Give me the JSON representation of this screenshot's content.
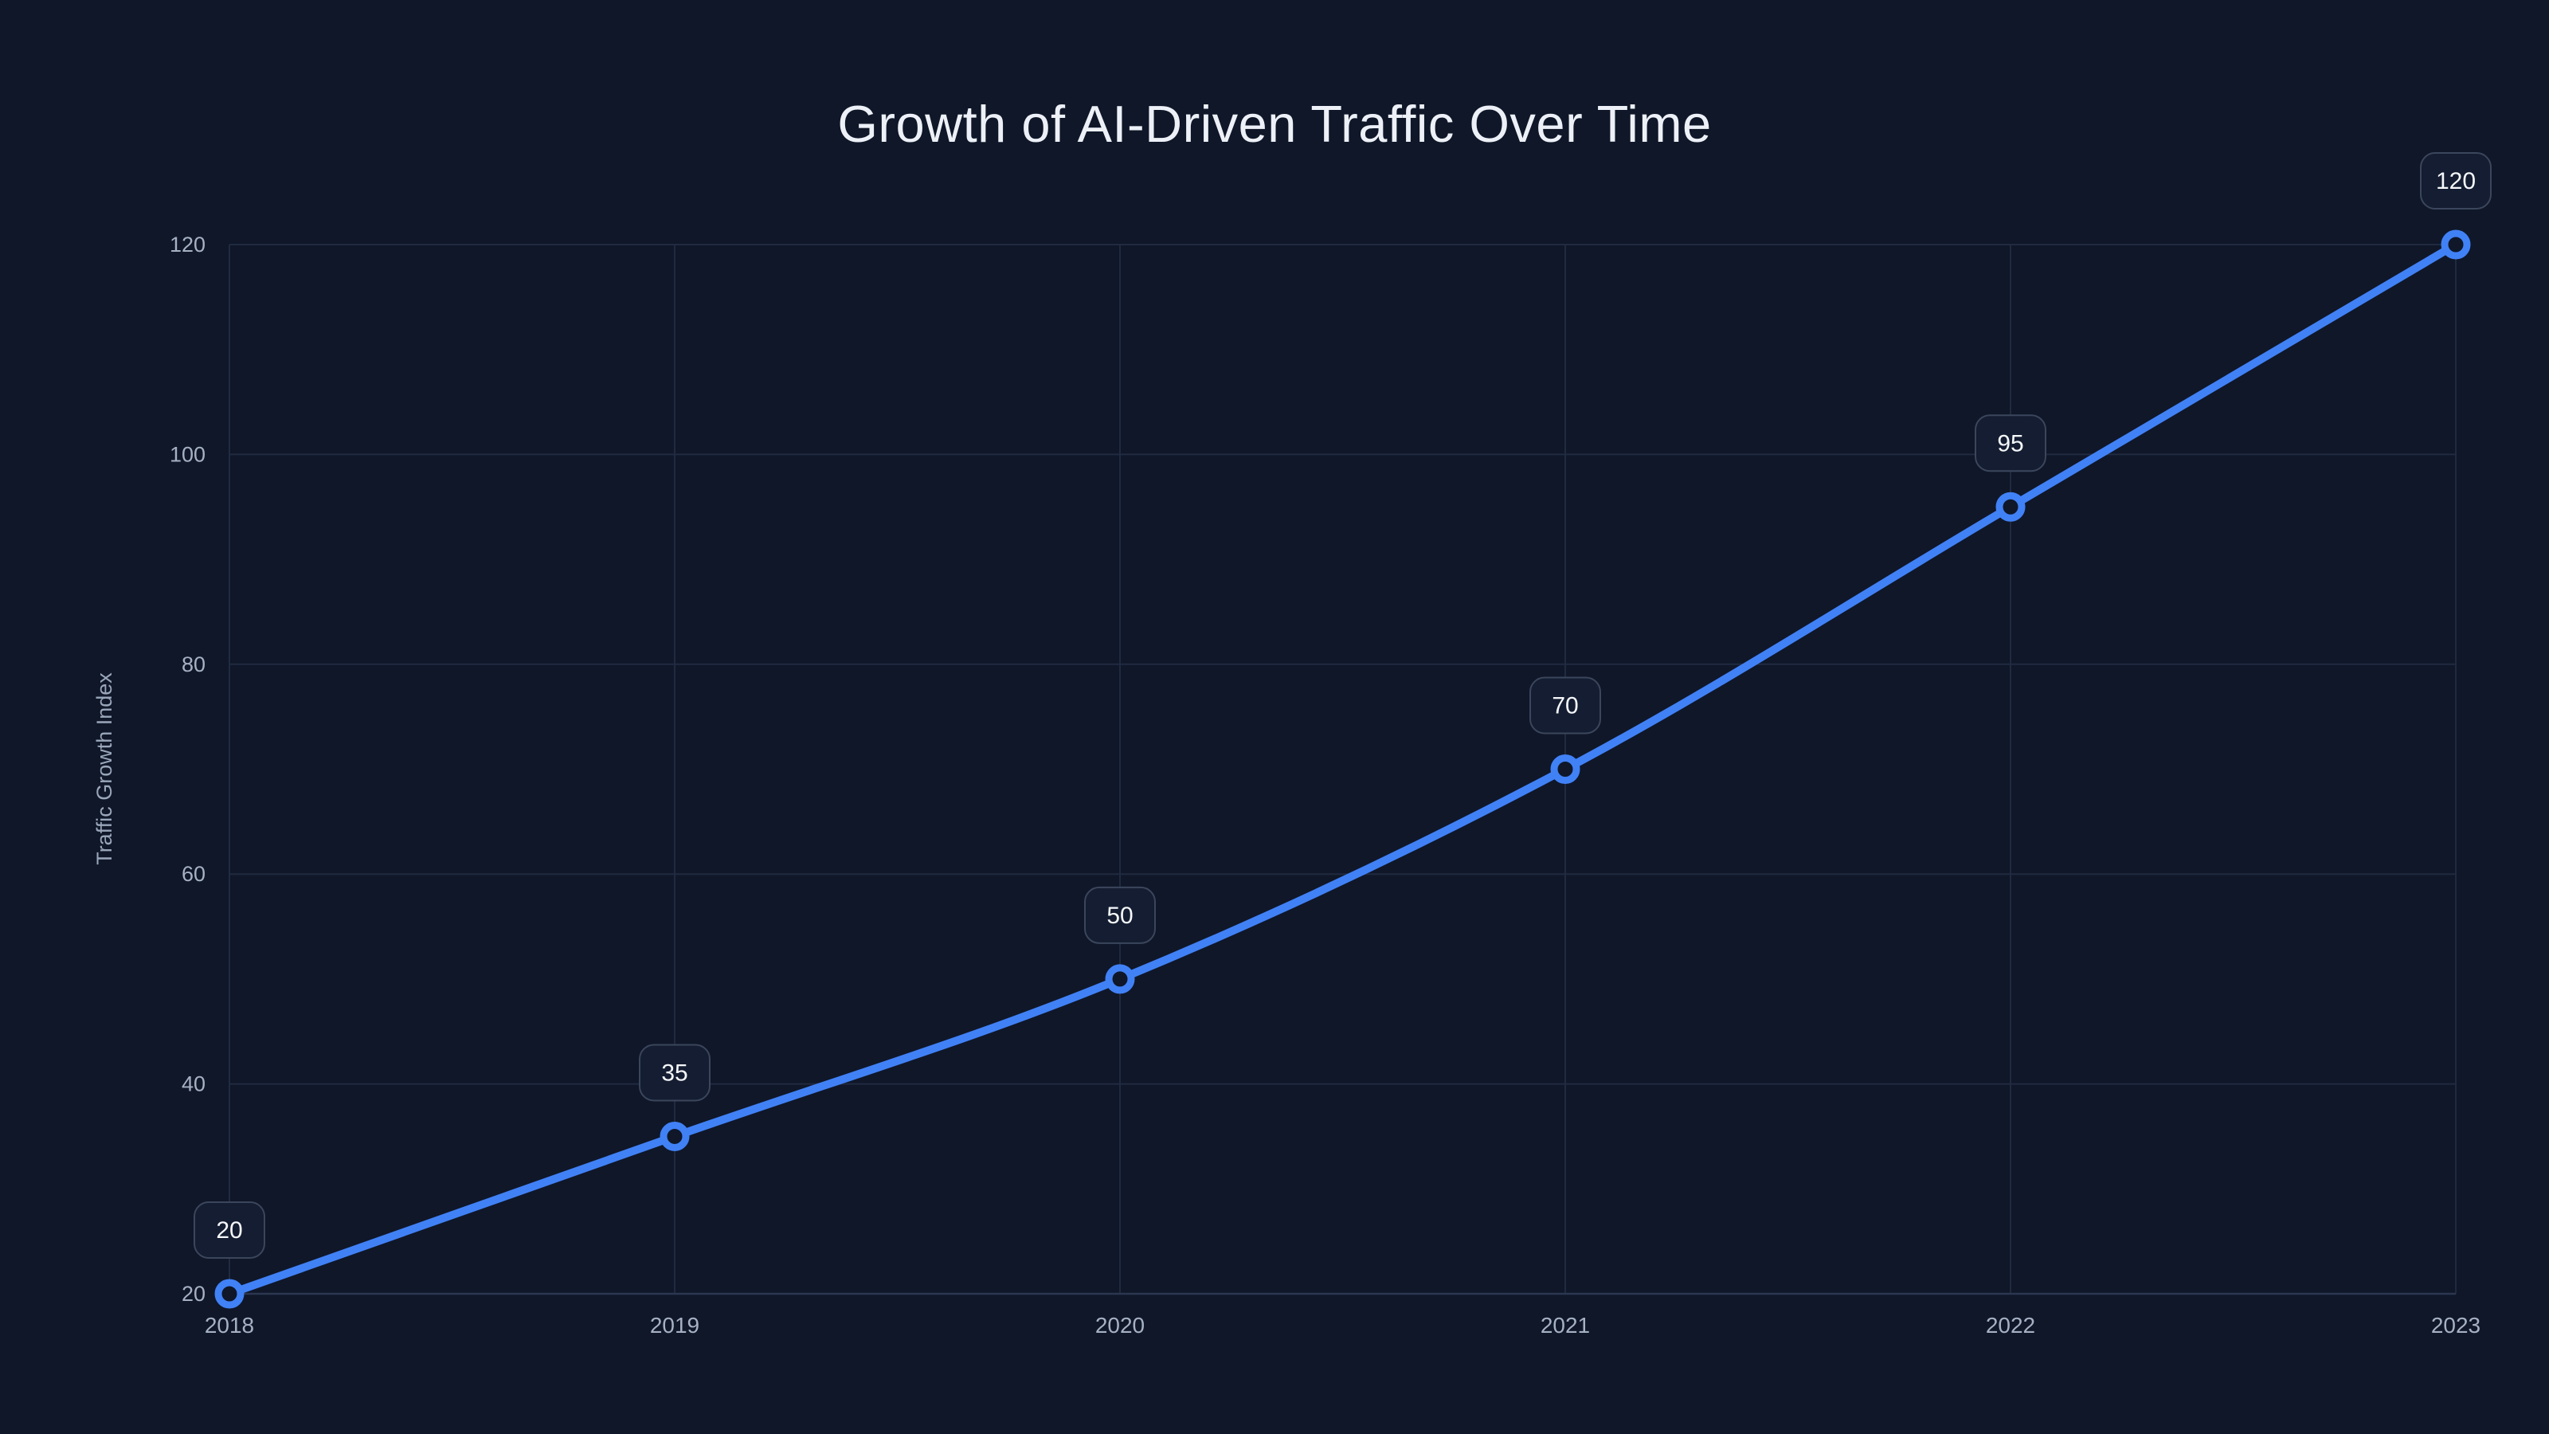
{
  "chart_data": {
    "type": "line",
    "title": "Growth of AI-Driven Traffic Over Time",
    "xlabel": "",
    "ylabel": "Traffic Growth Index",
    "categories": [
      "2018",
      "2019",
      "2020",
      "2021",
      "2022",
      "2023"
    ],
    "values": [
      20,
      35,
      50,
      70,
      95,
      120
    ],
    "point_labels": [
      "20",
      "35",
      "50",
      "70",
      "95",
      "120"
    ],
    "ylim": [
      20,
      120
    ],
    "yticks": [
      20,
      40,
      60,
      80,
      100,
      120
    ],
    "grid": true,
    "legend": false,
    "smooth": true,
    "colors": {
      "background": "#0f1729",
      "line": "#4181f6",
      "point_ring": "#4181f6",
      "point_fill": "#0f1729",
      "grid": "#202a40",
      "axis_line": "#2b3650",
      "tick_text": "#a6b1c4",
      "axis_title_text": "#9aa6ba",
      "title_text": "#edf1f7",
      "badge_fill": "#141d31",
      "badge_border": "#3b465c",
      "badge_text": "#f5f7fa"
    }
  }
}
